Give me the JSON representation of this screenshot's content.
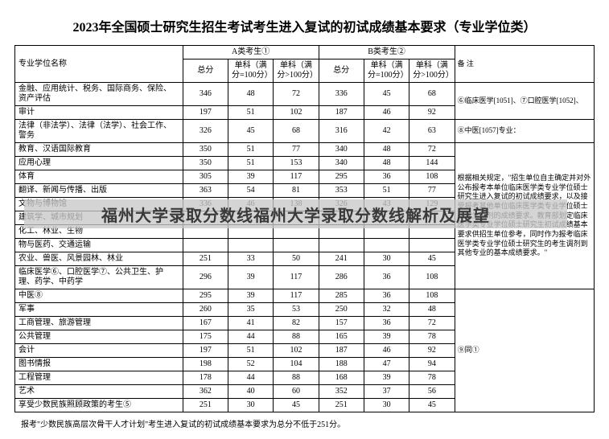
{
  "title": "2023年全国硕士研究生招生考试考生进入复试的初试成绩基本要求（专业学位类）",
  "headers": {
    "major": "专业学位名称",
    "groupA": "A类考生①",
    "groupB": "B类考生②",
    "remark": "备  注",
    "total": "总分",
    "sub1": "单科（满分=100分）",
    "sub2": "单科（满分>100分）"
  },
  "rows": [
    {
      "major": "金融、应用统计、税务、国际商务、保险、资产评估",
      "a_total": "346",
      "a_s1": "48",
      "a_s2": "72",
      "b_total": "336",
      "b_s1": "45",
      "b_s2": "68"
    },
    {
      "major": "审计",
      "a_total": "197",
      "a_s1": "51",
      "a_s2": "102",
      "b_total": "187",
      "b_s1": "46",
      "b_s2": "92"
    },
    {
      "major": "法律（非法学）、法律（法学）、社会工作、警务",
      "a_total": "326",
      "a_s1": "45",
      "a_s2": "68",
      "b_total": "316",
      "b_s1": "42",
      "b_s2": "63"
    },
    {
      "major": "教育、汉语国际教育",
      "a_total": "350",
      "a_s1": "51",
      "a_s2": "77",
      "b_total": "340",
      "b_s1": "48",
      "b_s2": "72"
    },
    {
      "major": "应用心理",
      "a_total": "350",
      "a_s1": "51",
      "a_s2": "153",
      "b_total": "340",
      "b_s1": "48",
      "b_s2": "144"
    },
    {
      "major": "体育",
      "a_total": "305",
      "a_s1": "39",
      "a_s2": "117",
      "b_total": "295",
      "b_s1": "36",
      "b_s2": "108"
    },
    {
      "major": "翻译、新闻与传播、出版",
      "a_total": "363",
      "a_s1": "54",
      "a_s2": "81",
      "b_total": "353",
      "b_s1": "51",
      "b_s2": "77"
    },
    {
      "major": "文物与博物馆",
      "a_total": "336",
      "a_s1": "46",
      "a_s2": "138",
      "b_total": "326",
      "b_s1": "43",
      "b_s2": "129"
    },
    {
      "major": "建筑学、城市规划",
      "a_total": "",
      "a_s1": "",
      "a_s2": "",
      "b_total": "",
      "b_s1": "",
      "b_s2": ""
    },
    {
      "major": "化工、林业、生物",
      "a_total": "",
      "a_s1": "",
      "a_s2": "",
      "b_total": "",
      "b_s1": "",
      "b_s2": ""
    },
    {
      "major": "物与医药、交通运输",
      "a_total": "",
      "a_s1": "",
      "a_s2": "",
      "b_total": "",
      "b_s1": "",
      "b_s2": ""
    },
    {
      "major": "农业、兽医、风景园林、林业",
      "a_total": "251",
      "a_s1": "33",
      "a_s2": "50",
      "b_total": "241",
      "b_s1": "30",
      "b_s2": "45"
    },
    {
      "major": "临床医学⑥、口腔医学⑦、公共卫生、护理、药学、中药学",
      "a_total": "296",
      "a_s1": "39",
      "a_s2": "117",
      "b_total": "286",
      "b_s1": "36",
      "b_s2": "108"
    },
    {
      "major": "中医⑧",
      "a_total": "295",
      "a_s1": "39",
      "a_s2": "117",
      "b_total": "285",
      "b_s1": "36",
      "b_s2": "108"
    },
    {
      "major": "军事",
      "a_total": "260",
      "a_s1": "35",
      "a_s2": "53",
      "b_total": "250",
      "b_s1": "32",
      "b_s2": "48"
    },
    {
      "major": "工商管理、旅游管理",
      "a_total": "167",
      "a_s1": "41",
      "a_s2": "82",
      "b_total": "157",
      "b_s1": "36",
      "b_s2": "72"
    },
    {
      "major": "公共管理",
      "a_total": "175",
      "a_s1": "44",
      "a_s2": "88",
      "b_total": "165",
      "b_s1": "39",
      "b_s2": "78"
    },
    {
      "major": "会计",
      "a_total": "197",
      "a_s1": "51",
      "a_s2": "102",
      "b_total": "187",
      "b_s1": "46",
      "b_s2": "92"
    },
    {
      "major": "图书情报",
      "a_total": "198",
      "a_s1": "52",
      "a_s2": "104",
      "b_total": "188",
      "b_s1": "47",
      "b_s2": "94"
    },
    {
      "major": "工程管理",
      "a_total": "178",
      "a_s1": "44",
      "a_s2": "88",
      "b_total": "168",
      "b_s1": "39",
      "b_s2": "78"
    },
    {
      "major": "艺术",
      "a_total": "362",
      "a_s1": "40",
      "a_s2": "60",
      "b_total": "352",
      "b_s1": "37",
      "b_s2": "56"
    },
    {
      "major": "享受少数民族照顾政策的考生⑤",
      "a_total": "251",
      "a_s1": "30",
      "a_s2": "45",
      "b_total": "251",
      "b_s1": "30",
      "b_s2": "45"
    }
  ],
  "remarks": {
    "r1": "⑥临床医学[1051]、⑦口腔医学[1052]、",
    "r2": "⑧中医[1057]专业：",
    "r3": "根据相关规定，\"招生单位自主确定并对外公布报考本单位临床医学类专业学位硕士研究生进入复试的初试成绩要求，以及接受报考其他单位临床医学类专业学位硕士研究生调剂的成绩要求。教育部划定临床医学类专业学位硕士研究生初试成绩基本要求供招生单位参考，同时作为报考临床医学类专业学位硕士研究生的考生调剂到其他专业的基本成绩要求。\"",
    "r4": "⑨同①"
  },
  "footer": "报考\"少数民族高层次骨干人才计划\"考生进入复试的初试成绩基本要求为总分不低于251分。",
  "overlay": "福州大学录取分数线福州大学录取分数线解析及展望",
  "style": {
    "border_color": "#000000",
    "bg_color": "#ffffff",
    "overlay_bg": "rgba(200,200,200,0.78)",
    "overlay_text_color": "#3a3a3a",
    "title_fontsize": 16,
    "cell_fontsize": 10
  }
}
